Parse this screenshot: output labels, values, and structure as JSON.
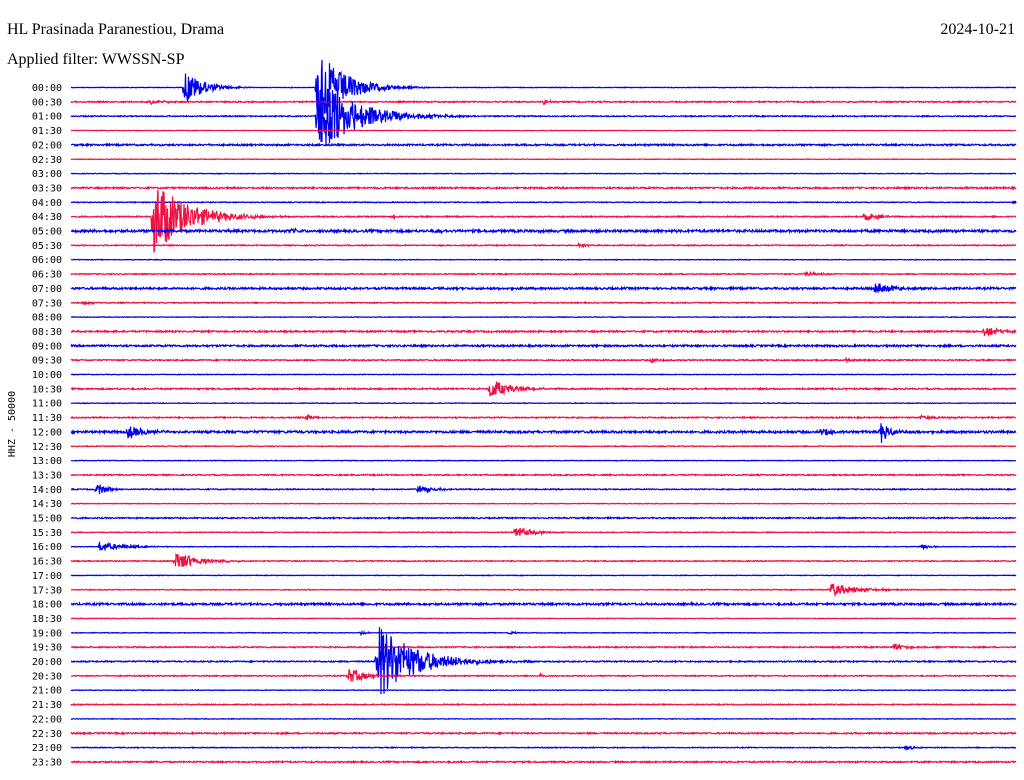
{
  "header": {
    "station": "HL Prasinada Paranestiou, Drama",
    "date": "2024-10-21",
    "filter": "Applied filter: WWSSN-SP"
  },
  "chart_data": {
    "type": "line",
    "title": "HL Prasinada Paranestiou, Drama",
    "subtitle": "Applied filter: WWSSN-SP",
    "ylabel": "HHZ - 50000",
    "xlabel": "",
    "grid": false,
    "colors": {
      "even": "#0000EE",
      "odd": "#EE1144"
    },
    "row_labels": [
      "00:00",
      "00:30",
      "01:00",
      "01:30",
      "02:00",
      "02:30",
      "03:00",
      "03:30",
      "04:00",
      "04:30",
      "05:00",
      "05:30",
      "06:00",
      "06:30",
      "07:00",
      "07:30",
      "08:00",
      "08:30",
      "09:00",
      "09:30",
      "10:00",
      "10:30",
      "11:00",
      "11:30",
      "12:00",
      "12:30",
      "13:00",
      "13:30",
      "14:00",
      "14:30",
      "15:00",
      "15:30",
      "16:00",
      "16:30",
      "17:00",
      "17:30",
      "18:00",
      "18:30",
      "19:00",
      "19:30",
      "20:00",
      "20:30",
      "21:00",
      "21:30",
      "22:00",
      "22:30",
      "23:00",
      "23:30"
    ],
    "row_minutes": 30,
    "noise": [
      0.3,
      0.6,
      0.5,
      0.3,
      0.8,
      0.3,
      0.3,
      0.8,
      0.4,
      0.6,
      1.2,
      0.5,
      0.3,
      0.5,
      1.0,
      0.5,
      0.3,
      0.8,
      0.9,
      0.6,
      0.3,
      0.7,
      0.3,
      0.6,
      1.1,
      0.4,
      0.3,
      0.6,
      0.5,
      0.3,
      0.6,
      0.4,
      0.3,
      0.5,
      0.3,
      0.4,
      1.0,
      0.3,
      0.3,
      0.6,
      0.6,
      0.5,
      0.3,
      0.5,
      0.3,
      0.7,
      0.4,
      0.7
    ],
    "events": [
      {
        "row": 0,
        "minute": 3.6,
        "amp": 18,
        "dur": 1.2
      },
      {
        "row": 0,
        "minute": 7.8,
        "amp": 40,
        "dur": 1.8
      },
      {
        "row": 1,
        "minute": 2.5,
        "amp": 3,
        "dur": 0.8
      },
      {
        "row": 1,
        "minute": 15.0,
        "amp": 3,
        "dur": 0.4
      },
      {
        "row": 2,
        "minute": 7.8,
        "amp": 42,
        "dur": 2.5
      },
      {
        "row": 8,
        "minute": 29.9,
        "amp": 2,
        "dur": 0.3
      },
      {
        "row": 9,
        "minute": 2.6,
        "amp": 40,
        "dur": 2.2
      },
      {
        "row": 9,
        "minute": 10.2,
        "amp": 2,
        "dur": 0.3
      },
      {
        "row": 9,
        "minute": 25.2,
        "amp": 5,
        "dur": 0.8
      },
      {
        "row": 10,
        "minute": 7.0,
        "amp": 2,
        "dur": 0.5
      },
      {
        "row": 10,
        "minute": 11.6,
        "amp": 2,
        "dur": 0.5
      },
      {
        "row": 11,
        "minute": 16.1,
        "amp": 2,
        "dur": 0.6
      },
      {
        "row": 13,
        "minute": 23.3,
        "amp": 2,
        "dur": 1.0
      },
      {
        "row": 14,
        "minute": 25.5,
        "amp": 6,
        "dur": 1.2
      },
      {
        "row": 15,
        "minute": 0.4,
        "amp": 2,
        "dur": 0.8
      },
      {
        "row": 17,
        "minute": 29.0,
        "amp": 6,
        "dur": 1.0
      },
      {
        "row": 19,
        "minute": 18.4,
        "amp": 2,
        "dur": 0.6
      },
      {
        "row": 19,
        "minute": 24.6,
        "amp": 2,
        "dur": 0.4
      },
      {
        "row": 21,
        "minute": 13.3,
        "amp": 10,
        "dur": 1.4
      },
      {
        "row": 23,
        "minute": 7.5,
        "amp": 4,
        "dur": 0.3
      },
      {
        "row": 23,
        "minute": 27.0,
        "amp": 2,
        "dur": 1.5
      },
      {
        "row": 24,
        "minute": 1.8,
        "amp": 7,
        "dur": 1.2
      },
      {
        "row": 24,
        "minute": 23.8,
        "amp": 5,
        "dur": 0.6
      },
      {
        "row": 24,
        "minute": 25.7,
        "amp": 12,
        "dur": 0.6
      },
      {
        "row": 28,
        "minute": 0.8,
        "amp": 8,
        "dur": 0.6
      },
      {
        "row": 28,
        "minute": 11.0,
        "amp": 5,
        "dur": 1.0
      },
      {
        "row": 31,
        "minute": 14.1,
        "amp": 6,
        "dur": 1.2
      },
      {
        "row": 32,
        "minute": 0.9,
        "amp": 5,
        "dur": 1.6
      },
      {
        "row": 32,
        "minute": 27.0,
        "amp": 3,
        "dur": 0.5
      },
      {
        "row": 33,
        "minute": 3.3,
        "amp": 10,
        "dur": 1.4
      },
      {
        "row": 35,
        "minute": 24.1,
        "amp": 7,
        "dur": 1.6
      },
      {
        "row": 38,
        "minute": 9.2,
        "amp": 2,
        "dur": 0.4
      },
      {
        "row": 38,
        "minute": 13.9,
        "amp": 2,
        "dur": 0.4
      },
      {
        "row": 39,
        "minute": 26.1,
        "amp": 4,
        "dur": 0.8
      },
      {
        "row": 40,
        "minute": 9.7,
        "amp": 40,
        "dur": 2.5
      },
      {
        "row": 41,
        "minute": 8.8,
        "amp": 8,
        "dur": 1.2
      },
      {
        "row": 41,
        "minute": 14.9,
        "amp": 2,
        "dur": 0.3
      },
      {
        "row": 46,
        "minute": 26.5,
        "amp": 3,
        "dur": 0.5
      }
    ]
  },
  "axes": {
    "ylabel": "HHZ - 50000"
  }
}
